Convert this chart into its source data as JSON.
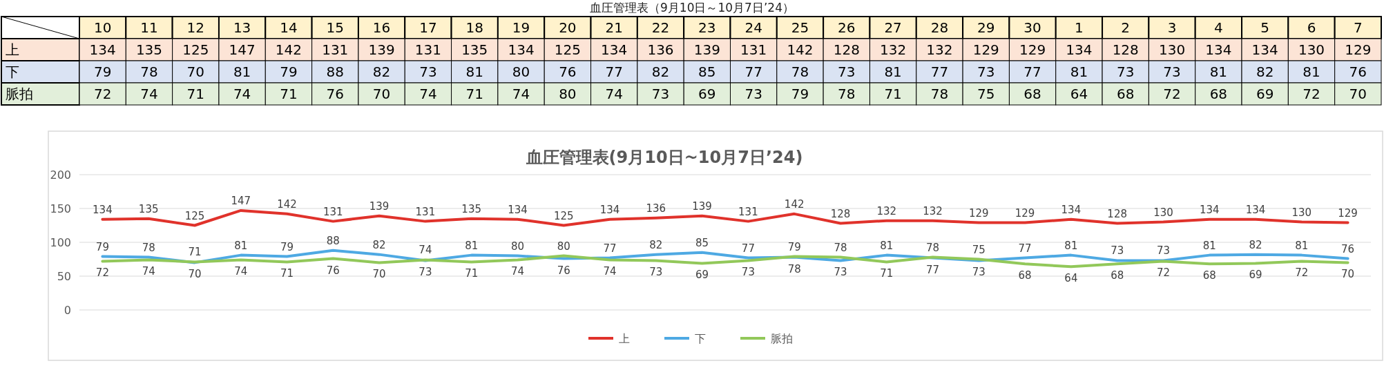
{
  "chart_data": [
    {
      "type": "heatmap",
      "title": "血圧管理表（9月10日～10月7日’24）",
      "categories": [
        "10",
        "11",
        "12",
        "13",
        "14",
        "15",
        "16",
        "17",
        "18",
        "19",
        "20",
        "21",
        "22",
        "23",
        "24",
        "25",
        "26",
        "27",
        "28",
        "29",
        "30",
        "1",
        "2",
        "3",
        "4",
        "5",
        "6",
        "7"
      ],
      "y_categories": [
        "上",
        "下",
        "脈拍"
      ],
      "cells": [
        [
          134,
          135,
          125,
          147,
          142,
          131,
          139,
          131,
          135,
          134,
          125,
          134,
          136,
          139,
          131,
          142,
          128,
          132,
          132,
          129,
          129,
          134,
          128,
          130,
          134,
          134,
          130,
          129
        ],
        [
          79,
          78,
          70,
          81,
          79,
          88,
          82,
          73,
          81,
          80,
          76,
          77,
          82,
          85,
          77,
          78,
          73,
          81,
          77,
          73,
          77,
          81,
          73,
          73,
          81,
          82,
          81,
          76
        ],
        [
          72,
          74,
          71,
          74,
          71,
          76,
          70,
          74,
          71,
          74,
          80,
          74,
          73,
          69,
          73,
          79,
          78,
          71,
          78,
          75,
          68,
          64,
          68,
          72,
          68,
          69,
          72,
          70
        ]
      ],
      "data_labels": true
    },
    {
      "type": "line",
      "title": "血圧管理表(9月10日~10月7日’24)",
      "categories": [
        null,
        null,
        null,
        null,
        null,
        null,
        null,
        null,
        null,
        null,
        null,
        null,
        null,
        null,
        null,
        null,
        null,
        null,
        null,
        null,
        null,
        null,
        null,
        null,
        null,
        null,
        null,
        null
      ],
      "series": [
        {
          "name": "上",
          "color": "#e0322b",
          "values": [
            134,
            135,
            125,
            147,
            142,
            131,
            139,
            131,
            135,
            134,
            125,
            134,
            136,
            139,
            131,
            142,
            128,
            132,
            132,
            129,
            129,
            134,
            128,
            130,
            134,
            134,
            130,
            129
          ]
        },
        {
          "name": "下",
          "color": "#4ea9e3",
          "values": [
            79,
            78,
            70,
            81,
            79,
            88,
            82,
            73,
            81,
            80,
            76,
            77,
            82,
            85,
            77,
            78,
            73,
            81,
            77,
            73,
            77,
            81,
            73,
            73,
            81,
            82,
            81,
            76
          ]
        },
        {
          "name": "脈拍",
          "color": "#92c85a",
          "values": [
            72,
            74,
            71,
            74,
            71,
            76,
            70,
            74,
            71,
            74,
            80,
            74,
            73,
            69,
            73,
            79,
            78,
            71,
            78,
            75,
            68,
            64,
            68,
            72,
            68,
            69,
            72,
            70
          ]
        }
      ],
      "ylim": [
        0,
        200
      ],
      "yticks": [
        0,
        50,
        100,
        150,
        200
      ],
      "grid": "y",
      "legend": "bottom",
      "data_labels": true,
      "marker": "none",
      "line_style": "solid",
      "tick_labels": "y"
    }
  ]
}
